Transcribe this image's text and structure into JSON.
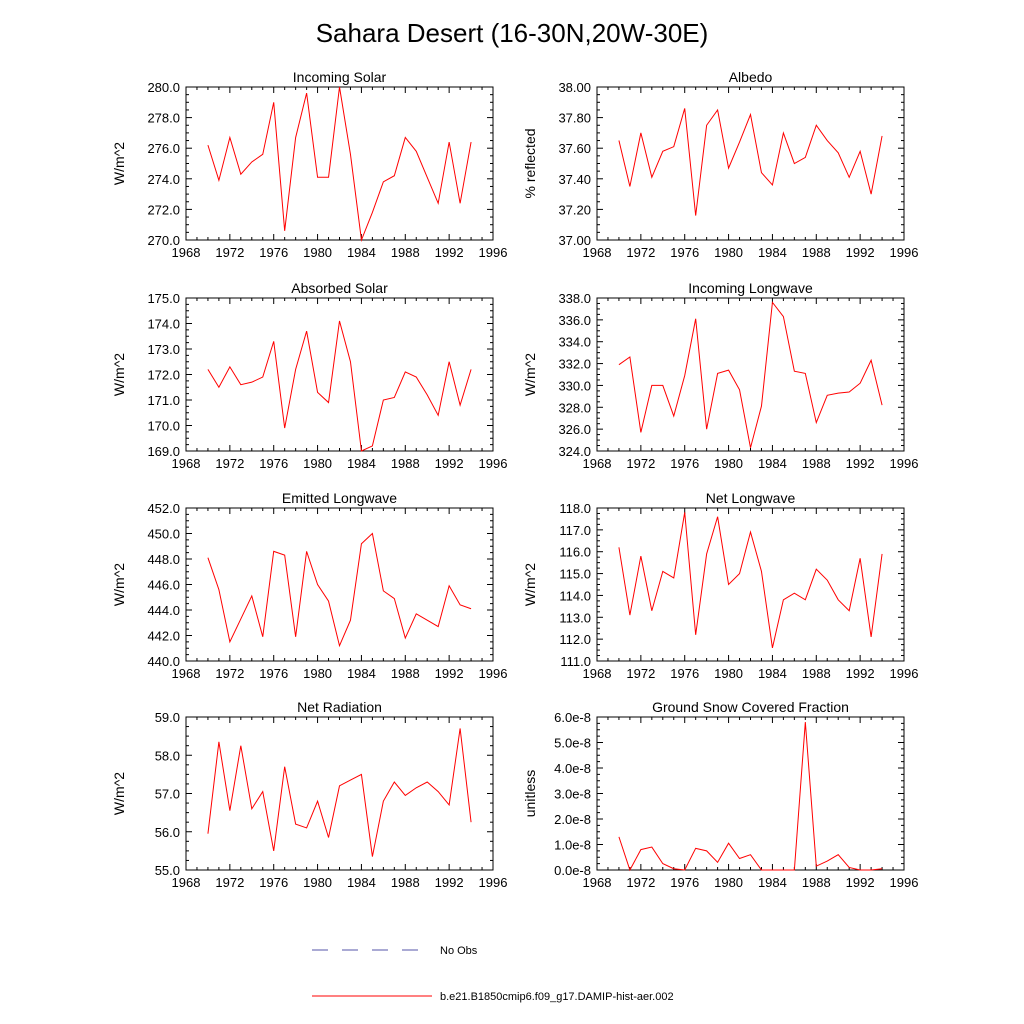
{
  "figure": {
    "title": "Sahara Desert (16-30N,20W-30E)"
  },
  "colors": {
    "model_line": "#ff0000",
    "obs_line": "#5555aa",
    "axis": "#000000"
  },
  "legend": {
    "items": [
      {
        "label": "No Obs",
        "style": "dashed",
        "color": "#5555aa"
      },
      {
        "label": "b.e21.B1850cmip6.f09_g17.DAMIP-hist-aer.002",
        "style": "solid",
        "color": "#ff0000"
      }
    ]
  },
  "chart_data": [
    {
      "type": "line",
      "title": "Incoming Solar",
      "ylabel": "W/m^2",
      "xlim": [
        1968,
        1996
      ],
      "xticks": [
        1968,
        1972,
        1976,
        1980,
        1984,
        1988,
        1992,
        1996
      ],
      "ylim": [
        270.0,
        280.0
      ],
      "yticks": [
        270.0,
        272.0,
        274.0,
        276.0,
        278.0,
        280.0
      ],
      "ydecimals": 1,
      "x": [
        1970,
        1971,
        1972,
        1973,
        1974,
        1975,
        1976,
        1977,
        1978,
        1979,
        1980,
        1981,
        1982,
        1983,
        1984,
        1985,
        1986,
        1987,
        1988,
        1989,
        1990,
        1991,
        1992,
        1993,
        1994
      ],
      "series": [
        {
          "values": [
            276.2,
            273.9,
            276.7,
            274.3,
            275.1,
            275.6,
            279.0,
            270.6,
            276.7,
            279.6,
            274.1,
            274.1,
            280.0,
            275.6,
            270.0,
            271.8,
            273.8,
            274.2,
            276.7,
            275.8,
            274.1,
            272.4,
            276.4,
            272.4,
            276.4
          ]
        }
      ]
    },
    {
      "type": "line",
      "title": "Albedo",
      "ylabel": "% reflected",
      "xlim": [
        1968,
        1996
      ],
      "xticks": [
        1968,
        1972,
        1976,
        1980,
        1984,
        1988,
        1992,
        1996
      ],
      "ylim": [
        37.0,
        38.0
      ],
      "yticks": [
        37.0,
        37.2,
        37.4,
        37.6,
        37.8,
        38.0
      ],
      "ydecimals": 2,
      "x": [
        1970,
        1971,
        1972,
        1973,
        1974,
        1975,
        1976,
        1977,
        1978,
        1979,
        1980,
        1981,
        1982,
        1983,
        1984,
        1985,
        1986,
        1987,
        1988,
        1989,
        1990,
        1991,
        1992,
        1993,
        1994
      ],
      "series": [
        {
          "values": [
            37.65,
            37.35,
            37.7,
            37.41,
            37.58,
            37.61,
            37.86,
            37.16,
            37.75,
            37.85,
            37.47,
            37.64,
            37.82,
            37.44,
            37.36,
            37.7,
            37.5,
            37.54,
            37.75,
            37.65,
            37.57,
            37.41,
            37.58,
            37.3,
            37.68
          ]
        }
      ]
    },
    {
      "type": "line",
      "title": "Absorbed Solar",
      "ylabel": "W/m^2",
      "xlim": [
        1968,
        1996
      ],
      "xticks": [
        1968,
        1972,
        1976,
        1980,
        1984,
        1988,
        1992,
        1996
      ],
      "ylim": [
        169.0,
        175.0
      ],
      "yticks": [
        169.0,
        170.0,
        171.0,
        172.0,
        173.0,
        174.0,
        175.0
      ],
      "ydecimals": 1,
      "x": [
        1970,
        1971,
        1972,
        1973,
        1974,
        1975,
        1976,
        1977,
        1978,
        1979,
        1980,
        1981,
        1982,
        1983,
        1984,
        1985,
        1986,
        1987,
        1988,
        1989,
        1990,
        1991,
        1992,
        1993,
        1994
      ],
      "series": [
        {
          "values": [
            172.2,
            171.5,
            172.3,
            171.6,
            171.7,
            171.9,
            173.3,
            169.9,
            172.2,
            173.7,
            171.3,
            170.9,
            174.1,
            172.5,
            169.0,
            169.2,
            171.0,
            171.1,
            172.1,
            171.9,
            171.2,
            170.4,
            172.5,
            170.8,
            172.2
          ]
        }
      ]
    },
    {
      "type": "line",
      "title": "Incoming Longwave",
      "ylabel": "W/m^2",
      "xlim": [
        1968,
        1996
      ],
      "xticks": [
        1968,
        1972,
        1976,
        1980,
        1984,
        1988,
        1992,
        1996
      ],
      "ylim": [
        324.0,
        338.0
      ],
      "yticks": [
        324.0,
        326.0,
        328.0,
        330.0,
        332.0,
        334.0,
        336.0,
        338.0
      ],
      "ydecimals": 1,
      "x": [
        1970,
        1971,
        1972,
        1973,
        1974,
        1975,
        1976,
        1977,
        1978,
        1979,
        1980,
        1981,
        1982,
        1983,
        1984,
        1985,
        1986,
        1987,
        1988,
        1989,
        1990,
        1991,
        1992,
        1993,
        1994
      ],
      "series": [
        {
          "values": [
            331.9,
            332.6,
            325.7,
            330.0,
            330.0,
            327.2,
            330.9,
            336.1,
            326.0,
            331.1,
            331.4,
            329.6,
            324.3,
            328.1,
            337.6,
            336.3,
            331.3,
            331.1,
            326.6,
            329.1,
            329.3,
            329.4,
            330.2,
            332.3,
            328.2
          ]
        }
      ]
    },
    {
      "type": "line",
      "title": "Emitted Longwave",
      "ylabel": "W/m^2",
      "xlim": [
        1968,
        1996
      ],
      "xticks": [
        1968,
        1972,
        1976,
        1980,
        1984,
        1988,
        1992,
        1996
      ],
      "ylim": [
        440.0,
        452.0
      ],
      "yticks": [
        440.0,
        442.0,
        444.0,
        446.0,
        448.0,
        450.0,
        452.0
      ],
      "ydecimals": 1,
      "x": [
        1970,
        1971,
        1972,
        1973,
        1974,
        1975,
        1976,
        1977,
        1978,
        1979,
        1980,
        1981,
        1982,
        1983,
        1984,
        1985,
        1986,
        1987,
        1988,
        1989,
        1990,
        1991,
        1992,
        1993,
        1994
      ],
      "series": [
        {
          "values": [
            448.1,
            445.6,
            441.5,
            443.3,
            445.1,
            441.9,
            448.6,
            448.3,
            441.9,
            448.6,
            446.0,
            444.7,
            441.2,
            443.2,
            449.2,
            450.0,
            445.5,
            444.9,
            441.8,
            443.7,
            443.2,
            442.7,
            445.9,
            444.4,
            444.1
          ]
        }
      ]
    },
    {
      "type": "line",
      "title": "Net Longwave",
      "ylabel": "W/m^2",
      "xlim": [
        1968,
        1996
      ],
      "xticks": [
        1968,
        1972,
        1976,
        1980,
        1984,
        1988,
        1992,
        1996
      ],
      "ylim": [
        111.0,
        118.0
      ],
      "yticks": [
        111.0,
        112.0,
        113.0,
        114.0,
        115.0,
        116.0,
        117.0,
        118.0
      ],
      "ydecimals": 1,
      "x": [
        1970,
        1971,
        1972,
        1973,
        1974,
        1975,
        1976,
        1977,
        1978,
        1979,
        1980,
        1981,
        1982,
        1983,
        1984,
        1985,
        1986,
        1987,
        1988,
        1989,
        1990,
        1991,
        1992,
        1993,
        1994
      ],
      "series": [
        {
          "values": [
            116.2,
            113.1,
            115.8,
            113.3,
            115.1,
            114.8,
            117.8,
            112.2,
            115.9,
            117.6,
            114.5,
            115.0,
            116.9,
            115.1,
            111.6,
            113.8,
            114.1,
            113.8,
            115.2,
            114.7,
            113.8,
            113.3,
            115.7,
            112.1,
            115.9
          ]
        }
      ]
    },
    {
      "type": "line",
      "title": "Net Radiation",
      "ylabel": "W/m^2",
      "xlim": [
        1968,
        1996
      ],
      "xticks": [
        1968,
        1972,
        1976,
        1980,
        1984,
        1988,
        1992,
        1996
      ],
      "ylim": [
        55.0,
        59.0
      ],
      "yticks": [
        55.0,
        56.0,
        57.0,
        58.0,
        59.0
      ],
      "ydecimals": 1,
      "x": [
        1970,
        1971,
        1972,
        1973,
        1974,
        1975,
        1976,
        1977,
        1978,
        1979,
        1980,
        1981,
        1982,
        1983,
        1984,
        1985,
        1986,
        1987,
        1988,
        1989,
        1990,
        1991,
        1992,
        1993,
        1994
      ],
      "series": [
        {
          "values": [
            55.95,
            58.35,
            56.55,
            58.25,
            56.6,
            57.05,
            55.5,
            57.7,
            56.2,
            56.1,
            56.8,
            55.85,
            57.2,
            57.35,
            57.5,
            55.35,
            56.8,
            57.3,
            56.95,
            57.15,
            57.3,
            57.05,
            56.7,
            58.7,
            56.25
          ]
        }
      ]
    },
    {
      "type": "line",
      "title": "Ground Snow Covered Fraction",
      "ylabel": "unitless",
      "xlim": [
        1968,
        1996
      ],
      "xticks": [
        1968,
        1972,
        1976,
        1980,
        1984,
        1988,
        1992,
        1996
      ],
      "ylim": [
        0,
        6e-08
      ],
      "yticks": [
        0,
        1e-08,
        2e-08,
        3e-08,
        4e-08,
        5e-08,
        6e-08
      ],
      "ytick_labels": [
        "0.0e-8",
        "1.0e-8",
        "2.0e-8",
        "3.0e-8",
        "4.0e-8",
        "5.0e-8",
        "6.0e-8"
      ],
      "x": [
        1970,
        1971,
        1972,
        1973,
        1974,
        1975,
        1976,
        1977,
        1978,
        1979,
        1980,
        1981,
        1982,
        1983,
        1984,
        1985,
        1986,
        1987,
        1988,
        1989,
        1990,
        1991,
        1992,
        1993,
        1994
      ],
      "series": [
        {
          "values": [
            1.3e-08,
            0.0,
            8e-09,
            9e-09,
            2.5e-09,
            5e-10,
            0.0,
            8.5e-09,
            7.5e-09,
            3e-09,
            1.05e-08,
            4.5e-09,
            6e-09,
            0.0,
            0.0,
            0.0,
            0.0,
            5.8e-08,
            1.5e-09,
            3.5e-09,
            6e-09,
            1e-09,
            0.0,
            0.0,
            5e-10
          ]
        }
      ]
    }
  ]
}
